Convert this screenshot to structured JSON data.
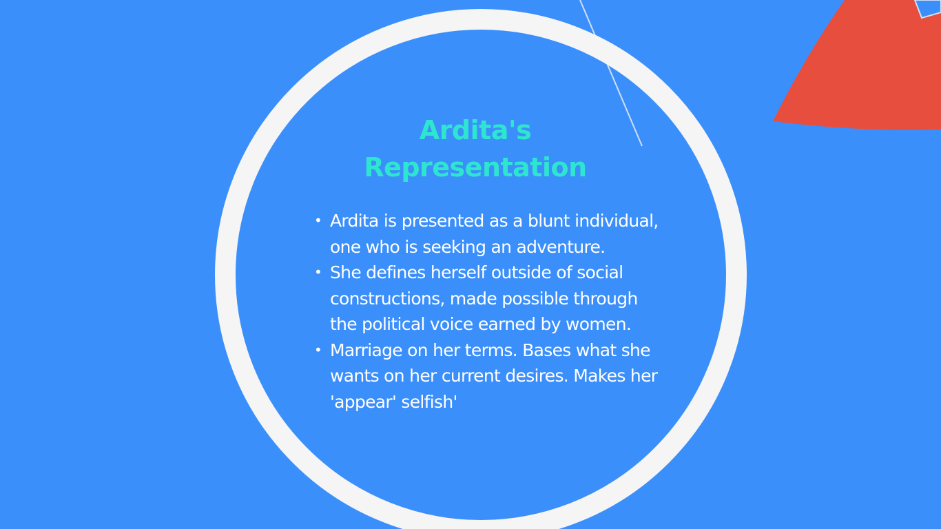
{
  "slide": {
    "title_lines": [
      "Ardita's",
      "Representation"
    ],
    "bullets": [
      "Ardita is presented as a blunt individual, one who is seeking an adventure.",
      "She defines herself outside of social constructions, made possible through the political voice earned by women.",
      "Marriage on her terms. Bases what she wants on her current desires. Makes her 'appear' selfish'"
    ],
    "bullet_glyph": "•"
  },
  "colors": {
    "background": "#3b8ffb",
    "ring": "#f5f5f5",
    "title": "#2ee6cf",
    "body_text": "#ffffff",
    "accent_shape": "#e84e3e"
  }
}
